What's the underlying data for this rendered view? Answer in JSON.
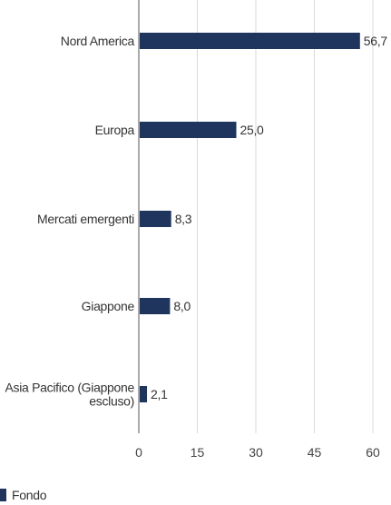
{
  "chart_data": {
    "type": "bar",
    "orientation": "horizontal",
    "categories": [
      "Nord America",
      "Europa",
      "Mercati emergenti",
      "Giappone",
      "Asia Pacifico (Giappone escluso)"
    ],
    "category_lines": [
      [
        "Nord America"
      ],
      [
        "Europa"
      ],
      [
        "Mercati emergenti"
      ],
      [
        "Giappone"
      ],
      [
        "Asia Pacifico (Giappone",
        "escluso)"
      ]
    ],
    "series": [
      {
        "name": "Fondo",
        "values": [
          56.7,
          25.0,
          8.3,
          8.0,
          2.1
        ],
        "color": "#1f355e"
      }
    ],
    "value_labels": [
      "56,7",
      "25,0",
      "8,3",
      "8,0",
      "2,1"
    ],
    "xlim": [
      0,
      60
    ],
    "xticks": [
      0,
      15,
      30,
      45,
      60
    ],
    "xtick_labels": [
      "0",
      "15",
      "30",
      "45",
      "60"
    ],
    "grid": true,
    "legend": "bottom-left"
  },
  "legend": {
    "label": "Fondo",
    "color": "#1f355e"
  },
  "colors": {
    "bar": "#1f355e",
    "grid": "#d9d9d9",
    "axis": "#555555"
  }
}
